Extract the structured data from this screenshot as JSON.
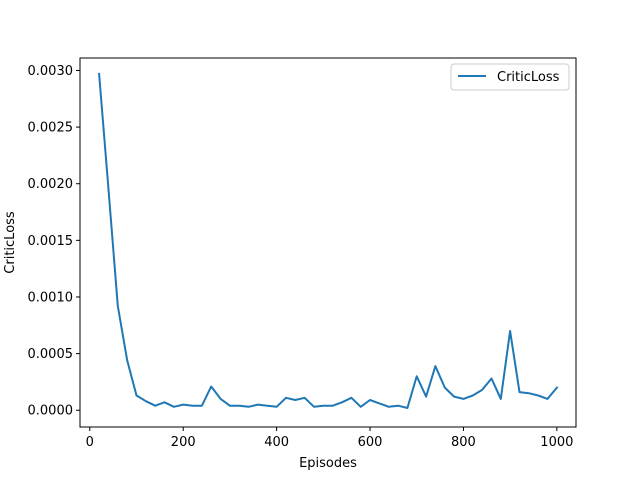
{
  "chart_data": {
    "type": "line",
    "title": "",
    "xlabel": "Episodes",
    "ylabel": "CriticLoss",
    "xlim": [
      -21,
      1041
    ],
    "ylim": [
      -0.000148,
      0.00311
    ],
    "xticks": [
      0,
      200,
      400,
      600,
      800,
      1000
    ],
    "xtick_labels": [
      "0",
      "200",
      "400",
      "600",
      "800",
      "1000"
    ],
    "yticks": [
      0.0,
      0.0005,
      0.001,
      0.0015,
      0.002,
      0.0025,
      0.003
    ],
    "ytick_labels": [
      "0.0000",
      "0.0005",
      "0.0010",
      "0.0015",
      "0.0020",
      "0.0025",
      "0.0030"
    ],
    "grid": false,
    "legend_position": "top-right",
    "series": [
      {
        "name": "CriticLoss",
        "color": "#1f77b4",
        "x": [
          20,
          40,
          60,
          80,
          100,
          120,
          140,
          160,
          180,
          200,
          220,
          240,
          260,
          280,
          300,
          320,
          340,
          360,
          380,
          400,
          420,
          440,
          460,
          480,
          500,
          520,
          540,
          560,
          580,
          600,
          620,
          640,
          660,
          680,
          700,
          720,
          740,
          760,
          780,
          800,
          820,
          840,
          860,
          880,
          900,
          920,
          940,
          960,
          980,
          1000
        ],
        "y": [
          0.00297,
          0.00195,
          0.00092,
          0.00044,
          0.00013,
          8e-05,
          4e-05,
          7e-05,
          3e-05,
          5e-05,
          4e-05,
          4e-05,
          0.00021,
          0.0001,
          4e-05,
          4e-05,
          3e-05,
          5e-05,
          4e-05,
          3e-05,
          0.00011,
          9e-05,
          0.00011,
          3e-05,
          4e-05,
          4e-05,
          7e-05,
          0.00011,
          3e-05,
          9e-05,
          6e-05,
          3e-05,
          4e-05,
          2e-05,
          0.0003,
          0.00012,
          0.00039,
          0.0002,
          0.00012,
          0.0001,
          0.00013,
          0.00018,
          0.00028,
          0.0001,
          0.0007,
          0.00016,
          0.00015,
          0.00013,
          0.0001,
          0.0002
        ]
      }
    ]
  }
}
